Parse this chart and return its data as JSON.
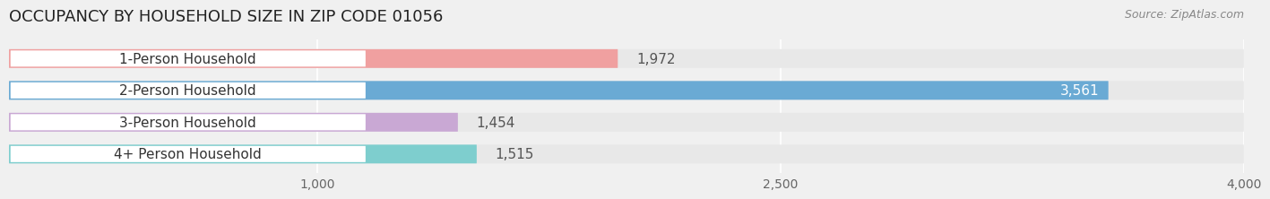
{
  "title": "OCCUPANCY BY HOUSEHOLD SIZE IN ZIP CODE 01056",
  "source": "Source: ZipAtlas.com",
  "categories": [
    "1-Person Household",
    "2-Person Household",
    "3-Person Household",
    "4+ Person Household"
  ],
  "values": [
    1972,
    3561,
    1454,
    1515
  ],
  "bar_colors": [
    "#f0a0a0",
    "#6aaad4",
    "#c9a8d4",
    "#7ecece"
  ],
  "label_bg": "#ffffff",
  "background_color": "#f0f0f0",
  "bar_bg_color": "#e8e8e8",
  "xlim": [
    0,
    4000
  ],
  "xticks": [
    1000,
    2500,
    4000
  ],
  "value_labels": [
    "1,972",
    "3,561",
    "1,454",
    "1,515"
  ],
  "title_fontsize": 13,
  "label_fontsize": 11,
  "tick_fontsize": 10,
  "source_fontsize": 9
}
